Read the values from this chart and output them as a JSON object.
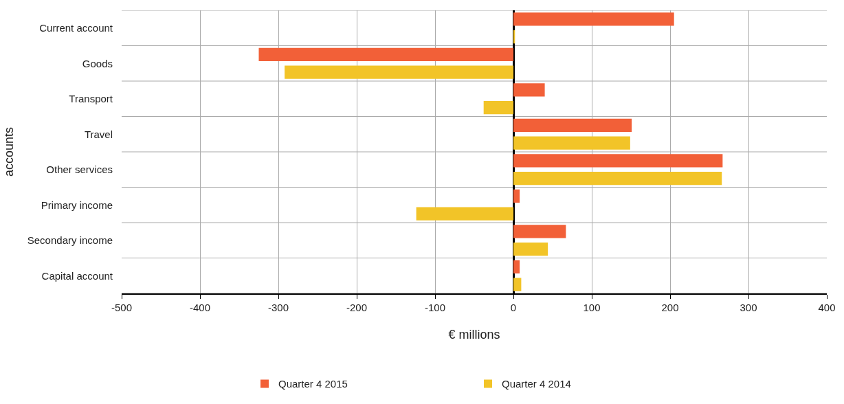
{
  "chart_data": {
    "type": "bar",
    "orientation": "horizontal",
    "ylabel": "accounts",
    "xlabel": "€ millions",
    "categories": [
      "Current account",
      "Goods",
      "Transport",
      "Travel",
      "Other services",
      "Primary income",
      "Secondary income",
      "Capital account"
    ],
    "series": [
      {
        "name": "Quarter 4 2015",
        "color": "#f26038",
        "values": [
          205,
          -325,
          40,
          151,
          267,
          8,
          67,
          8
        ]
      },
      {
        "name": "Quarter 4 2014",
        "color": "#f2c428",
        "values": [
          2,
          -292,
          -38,
          149,
          266,
          -124,
          44,
          10
        ]
      }
    ],
    "xlim": [
      -500,
      400
    ],
    "xticks": [
      -500,
      -400,
      -300,
      -200,
      -100,
      0,
      100,
      200,
      300,
      400
    ],
    "grid": true,
    "legend": "bottom"
  }
}
